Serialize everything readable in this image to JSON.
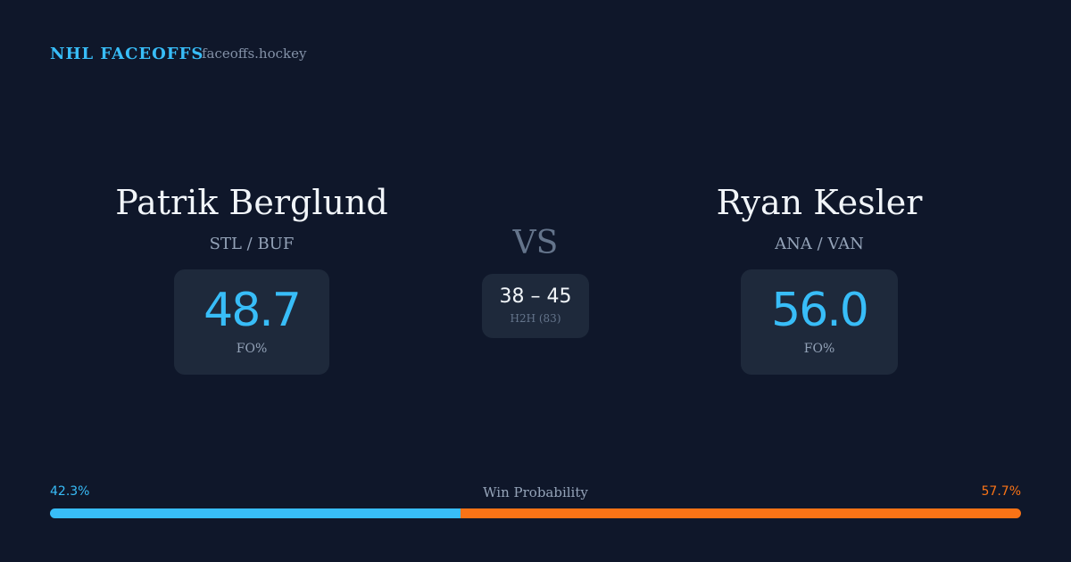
{
  "header": {
    "title": "NHL FACEOFFS",
    "site": "faceoffs.hockey"
  },
  "players": [
    {
      "name": "Patrik Berglund",
      "teams": "STL / BUF",
      "stat": "48.7",
      "stat_label": "FO%"
    },
    {
      "name": "Ryan Kesler",
      "teams": "ANA / VAN",
      "stat": "56.0",
      "stat_label": "FO%"
    }
  ],
  "versus": "VS",
  "h2h": {
    "score": "38 – 45",
    "label": "H2H (83)"
  },
  "win_probability": {
    "label": "Win Probability",
    "left": {
      "value": 42.3,
      "label": "42.3%",
      "color": "#38bdf8"
    },
    "right": {
      "value": 57.7,
      "label": "57.7%",
      "color": "#f97316"
    }
  }
}
